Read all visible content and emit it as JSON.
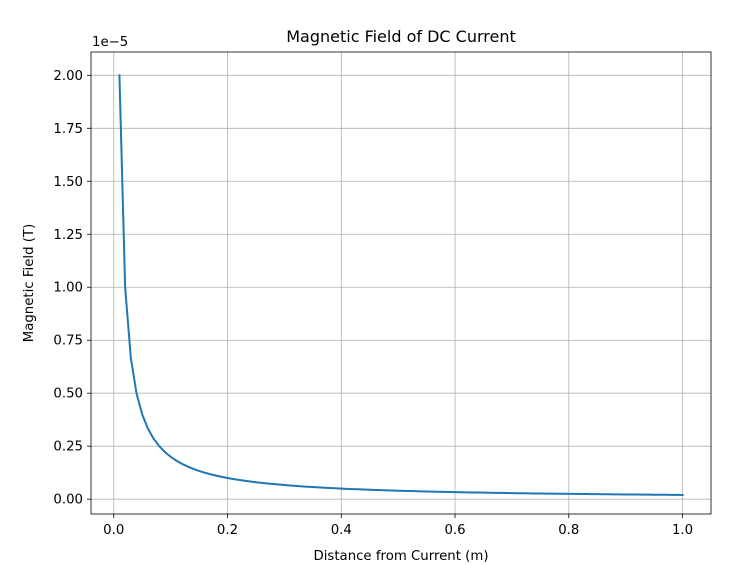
{
  "chart_data": {
    "type": "line",
    "title": "Magnetic Field of DC Current",
    "xlabel": "Distance from Current (m)",
    "ylabel": "Magnetic Field (T)",
    "offset_text": "1e−5",
    "xlim": [
      -0.04,
      1.05
    ],
    "ylim": [
      -7e-07,
      2.11e-05
    ],
    "x_ticks": [
      0.0,
      0.2,
      0.4,
      0.6,
      0.8,
      1.0
    ],
    "x_tick_labels": [
      "0.0",
      "0.2",
      "0.4",
      "0.6",
      "0.8",
      "1.0"
    ],
    "y_ticks": [
      0,
      2.5e-06,
      5e-06,
      7.5e-06,
      1e-05,
      1.25e-05,
      1.5e-05,
      1.75e-05,
      2e-05
    ],
    "y_tick_labels": [
      "0.00",
      "0.25",
      "0.50",
      "0.75",
      "1.00",
      "1.25",
      "1.50",
      "1.75",
      "2.00"
    ],
    "grid": true,
    "series": [
      {
        "color": "#1f77b4",
        "x_start": 0.01,
        "x_end": 1.0,
        "x_step": 0.01,
        "y": "2e-7 / x"
      }
    ]
  }
}
